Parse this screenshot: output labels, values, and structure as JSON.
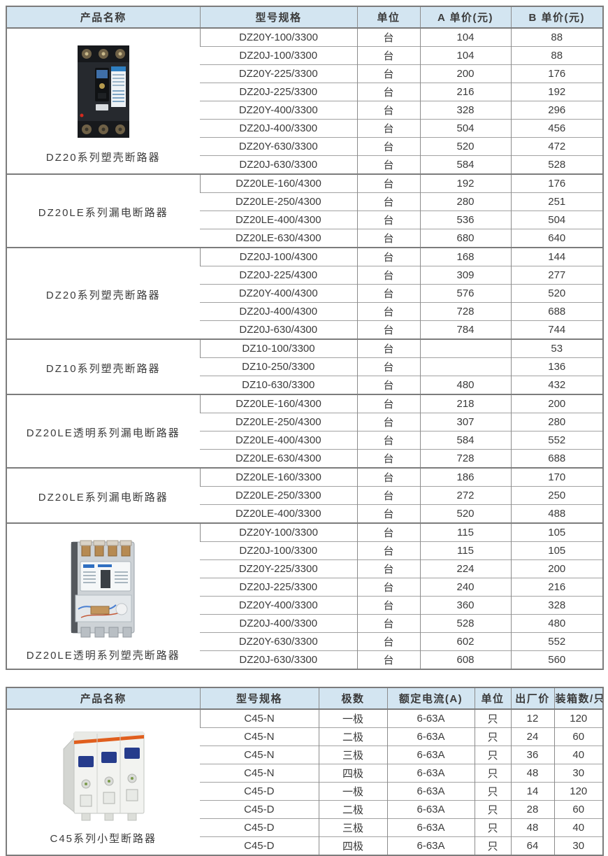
{
  "colors": {
    "header_bg": "#d3e5f1",
    "outer_border": "#7c7c7c",
    "row_line": "#a2a2a2",
    "text": "#3b3b3b"
  },
  "table1": {
    "headers": [
      "产品名称",
      "型号规格",
      "单位",
      "A 单价(元)",
      "B 单价(元)"
    ],
    "groups": [
      {
        "name": "DZ20系列塑壳断路器",
        "image": "dz20-molded-case-breaker-photo",
        "rows": [
          [
            "DZ20Y-100/3300",
            "台",
            "104",
            "88"
          ],
          [
            "DZ20J-100/3300",
            "台",
            "104",
            "88"
          ],
          [
            "DZ20Y-225/3300",
            "台",
            "200",
            "176"
          ],
          [
            "DZ20J-225/3300",
            "台",
            "216",
            "192"
          ],
          [
            "DZ20Y-400/3300",
            "台",
            "328",
            "296"
          ],
          [
            "DZ20J-400/3300",
            "台",
            "504",
            "456"
          ],
          [
            "DZ20Y-630/3300",
            "台",
            "520",
            "472"
          ],
          [
            "DZ20J-630/3300",
            "台",
            "584",
            "528"
          ]
        ]
      },
      {
        "name": "DZ20LE系列漏电断路器",
        "image": "",
        "rows": [
          [
            "DZ20LE-160/4300",
            "台",
            "192",
            "176"
          ],
          [
            "DZ20LE-250/4300",
            "台",
            "280",
            "251"
          ],
          [
            "DZ20LE-400/4300",
            "台",
            "536",
            "504"
          ],
          [
            "DZ20LE-630/4300",
            "台",
            "680",
            "640"
          ]
        ]
      },
      {
        "name": "DZ20系列塑壳断路器",
        "image": "",
        "rows": [
          [
            "DZ20J-100/4300",
            "台",
            "168",
            "144"
          ],
          [
            "DZ20J-225/4300",
            "台",
            "309",
            "277"
          ],
          [
            "DZ20Y-400/4300",
            "台",
            "576",
            "520"
          ],
          [
            "DZ20J-400/4300",
            "台",
            "728",
            "688"
          ],
          [
            "DZ20J-630/4300",
            "台",
            "784",
            "744"
          ]
        ]
      },
      {
        "name": "DZ10系列塑壳断路器",
        "image": "",
        "rows": [
          [
            "DZ10-100/3300",
            "台",
            "",
            "53"
          ],
          [
            "DZ10-250/3300",
            "台",
            "",
            "136"
          ],
          [
            "DZ10-630/3300",
            "台",
            "480",
            "432"
          ]
        ]
      },
      {
        "name": "DZ20LE透明系列漏电断路器",
        "image": "",
        "rows": [
          [
            "DZ20LE-160/4300",
            "台",
            "218",
            "200"
          ],
          [
            "DZ20LE-250/4300",
            "台",
            "307",
            "280"
          ],
          [
            "DZ20LE-400/4300",
            "台",
            "584",
            "552"
          ],
          [
            "DZ20LE-630/4300",
            "台",
            "728",
            "688"
          ]
        ]
      },
      {
        "name": "DZ20LE系列漏电断路器",
        "image": "",
        "rows": [
          [
            "DZ20LE-160/3300",
            "台",
            "186",
            "170"
          ],
          [
            "DZ20LE-250/3300",
            "台",
            "272",
            "250"
          ],
          [
            "DZ20LE-400/3300",
            "台",
            "520",
            "488"
          ]
        ]
      },
      {
        "name": "DZ20LE透明系列塑壳断路器",
        "image": "dz20le-transparent-breaker-photo",
        "rows": [
          [
            "DZ20Y-100/3300",
            "台",
            "115",
            "105"
          ],
          [
            "DZ20J-100/3300",
            "台",
            "115",
            "105"
          ],
          [
            "DZ20Y-225/3300",
            "台",
            "224",
            "200"
          ],
          [
            "DZ20J-225/3300",
            "台",
            "240",
            "216"
          ],
          [
            "DZ20Y-400/3300",
            "台",
            "360",
            "328"
          ],
          [
            "DZ20J-400/3300",
            "台",
            "528",
            "480"
          ],
          [
            "DZ20Y-630/3300",
            "台",
            "602",
            "552"
          ],
          [
            "DZ20J-630/3300",
            "台",
            "608",
            "560"
          ]
        ]
      }
    ]
  },
  "table2": {
    "headers": [
      "产品名称",
      "型号规格",
      "极数",
      "额定电流(A)",
      "单位",
      "出厂价",
      "装箱数/只"
    ],
    "groups": [
      {
        "name": "C45系列小型断路器",
        "image": "c45-mini-breaker-photo",
        "rows": [
          [
            "C45-N",
            "一极",
            "6-63A",
            "只",
            "12",
            "120"
          ],
          [
            "C45-N",
            "二极",
            "6-63A",
            "只",
            "24",
            "60"
          ],
          [
            "C45-N",
            "三极",
            "6-63A",
            "只",
            "36",
            "40"
          ],
          [
            "C45-N",
            "四极",
            "6-63A",
            "只",
            "48",
            "30"
          ],
          [
            "C45-D",
            "一极",
            "6-63A",
            "只",
            "14",
            "120"
          ],
          [
            "C45-D",
            "二极",
            "6-63A",
            "只",
            "28",
            "60"
          ],
          [
            "C45-D",
            "三极",
            "6-63A",
            "只",
            "48",
            "40"
          ],
          [
            "C45-D",
            "四极",
            "6-63A",
            "只",
            "64",
            "30"
          ]
        ]
      }
    ]
  }
}
